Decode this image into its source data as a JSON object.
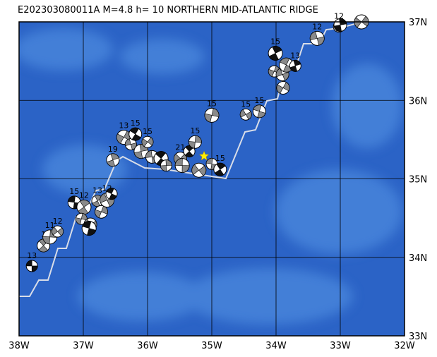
{
  "title": "E202303080011A  M=4.8  h= 10 NORTHERN MID-ATLANTIC RIDGE",
  "lonlim": [
    -38,
    -32
  ],
  "latlim": [
    33,
    37
  ],
  "lon_ticks": [
    {
      "value": -38,
      "label": "38W"
    },
    {
      "value": -37,
      "label": "37W"
    },
    {
      "value": -36,
      "label": "36W"
    },
    {
      "value": -35,
      "label": "35W"
    },
    {
      "value": -34,
      "label": "34W"
    },
    {
      "value": -33,
      "label": "33W"
    },
    {
      "value": -32,
      "label": "32W"
    }
  ],
  "lat_ticks": [
    {
      "value": 33,
      "label": "33N"
    },
    {
      "value": 34,
      "label": "34N"
    },
    {
      "value": 35,
      "label": "35N"
    },
    {
      "value": 36,
      "label": "36N"
    },
    {
      "value": 37,
      "label": "37N"
    }
  ],
  "epicenter": {
    "lon": -35.12,
    "lat": 35.29
  },
  "events": [
    {
      "lon": -37.8,
      "lat": 33.89,
      "label": "13"
    },
    {
      "lon": -37.62,
      "lat": 34.15,
      "label": "1"
    },
    {
      "lon": -37.52,
      "lat": 34.26,
      "label": "11"
    },
    {
      "lon": -37.4,
      "lat": 34.33,
      "label": "12"
    },
    {
      "lon": -37.14,
      "lat": 34.7,
      "label": "15"
    },
    {
      "lon": -36.99,
      "lat": 34.64,
      "label": "12"
    },
    {
      "lon": -37.03,
      "lat": 34.49
    },
    {
      "lon": -36.89,
      "lat": 34.42
    },
    {
      "lon": -36.91,
      "lat": 34.37
    },
    {
      "lon": -36.78,
      "lat": 34.72,
      "label": "13"
    },
    {
      "lon": -36.72,
      "lat": 34.58
    },
    {
      "lon": -36.63,
      "lat": 34.73,
      "label": "12"
    },
    {
      "lon": -36.56,
      "lat": 34.81
    },
    {
      "lon": -36.54,
      "lat": 35.24,
      "label": "19"
    },
    {
      "lon": -36.37,
      "lat": 35.53,
      "label": "13"
    },
    {
      "lon": -36.26,
      "lat": 35.44
    },
    {
      "lon": -36.19,
      "lat": 35.57,
      "label": "15"
    },
    {
      "lon": -36.1,
      "lat": 35.35
    },
    {
      "lon": -36.0,
      "lat": 35.47,
      "label": "15"
    },
    {
      "lon": -35.93,
      "lat": 35.28
    },
    {
      "lon": -35.79,
      "lat": 35.26
    },
    {
      "lon": -35.71,
      "lat": 35.17
    },
    {
      "lon": -35.49,
      "lat": 35.26,
      "label": "21"
    },
    {
      "lon": -35.46,
      "lat": 35.17
    },
    {
      "lon": -35.35,
      "lat": 35.35
    },
    {
      "lon": -35.26,
      "lat": 35.47,
      "label": "15"
    },
    {
      "lon": -35.2,
      "lat": 35.11
    },
    {
      "lon": -35.0,
      "lat": 35.19
    },
    {
      "lon": -34.87,
      "lat": 35.12,
      "label": "15"
    },
    {
      "lon": -35.0,
      "lat": 35.81,
      "label": "15"
    },
    {
      "lon": -34.47,
      "lat": 35.82,
      "label": "15"
    },
    {
      "lon": -34.26,
      "lat": 35.86,
      "label": "15"
    },
    {
      "lon": -34.01,
      "lat": 36.6,
      "label": "15"
    },
    {
      "lon": -34.03,
      "lat": 36.37
    },
    {
      "lon": -33.9,
      "lat": 36.33
    },
    {
      "lon": -33.84,
      "lat": 36.45
    },
    {
      "lon": -33.7,
      "lat": 36.44,
      "label": "13"
    },
    {
      "lon": -33.89,
      "lat": 36.16
    },
    {
      "lon": -33.36,
      "lat": 36.79,
      "label": "12"
    },
    {
      "lon": -33.02,
      "lat": 36.94,
      "label": "12"
    },
    {
      "lon": -33.0,
      "lat": 36.96
    },
    {
      "lon": -32.67,
      "lat": 37.0
    }
  ]
}
